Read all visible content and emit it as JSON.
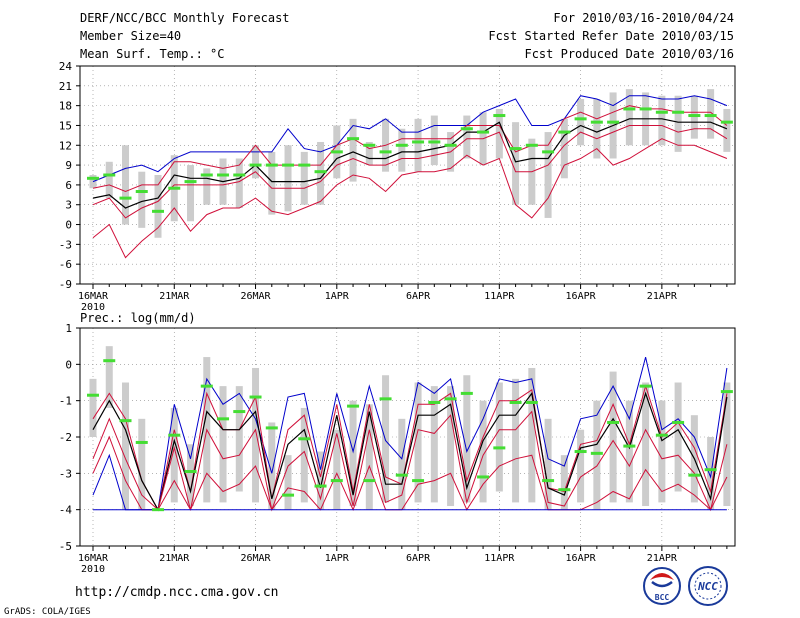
{
  "header": {
    "title": "DERF/NCC/BCC Monthly Forecast",
    "member_size": "Member Size=40",
    "variable1": "Mean Surf. Temp.: °C",
    "fcst_period": "For 2010/03/16-2010/04/24",
    "fcst_started": "Fcst Started Refer Date 2010/03/15",
    "fcst_produced": "Fcst Produced Date 2010/03/16"
  },
  "footer": {
    "url": "http://cmdp.ncc.cma.gov.cn",
    "grads": "GrADS: COLA/IGES",
    "logo_bcc": "BCC",
    "logo_ncc": "NCC"
  },
  "colors": {
    "mean": "#000000",
    "inner": "#d0103a",
    "outer": "#0000cc",
    "obs": "#44dd33",
    "box": "#cccccc",
    "grid": "#888888"
  },
  "chart_data": [
    {
      "type": "line",
      "title": "Mean Surf. Temp.: °C",
      "x_tick_labels": [
        "16MAR",
        "21MAR",
        "26MAR",
        "1APR",
        "6APR",
        "11APR",
        "16APR",
        "21APR"
      ],
      "x_tick_days": [
        1,
        6,
        11,
        16,
        21,
        26,
        31,
        36
      ],
      "year_label": "2010",
      "ylim": [
        -9,
        24
      ],
      "yticks": [
        -9,
        -6,
        -3,
        0,
        3,
        6,
        9,
        12,
        15,
        18,
        21,
        24
      ],
      "days": [
        1,
        2,
        3,
        4,
        5,
        6,
        7,
        8,
        9,
        10,
        11,
        12,
        13,
        14,
        15,
        16,
        17,
        18,
        19,
        20,
        21,
        22,
        23,
        24,
        25,
        26,
        27,
        28,
        29,
        30,
        31,
        32,
        33,
        34,
        35,
        36,
        37,
        38,
        39,
        40
      ],
      "series": [
        {
          "name": "max",
          "values": [
            6.5,
            7.5,
            8.5,
            9,
            8,
            10,
            11,
            11,
            11,
            11,
            11,
            11,
            14.5,
            11.5,
            11,
            12,
            15,
            14.5,
            16,
            14,
            14,
            15,
            15,
            15,
            17,
            18,
            19,
            15,
            15,
            16,
            19.5,
            19,
            18,
            19.5,
            19.5,
            19,
            19,
            19.5,
            19,
            18
          ]
        },
        {
          "name": "upper",
          "values": [
            5.5,
            6,
            5,
            6,
            6,
            9.5,
            9.5,
            9,
            8.5,
            9,
            12,
            9,
            9,
            9,
            9,
            12,
            13,
            11.5,
            12,
            13,
            13,
            13,
            13,
            15,
            15,
            15,
            11,
            12,
            12,
            16,
            17,
            16,
            17,
            18,
            17.5,
            17.5,
            17,
            17,
            17,
            15
          ]
        },
        {
          "name": "mean",
          "values": [
            4,
            4.5,
            2.5,
            3.5,
            4,
            7.5,
            7,
            7,
            6.5,
            7,
            9,
            6.5,
            6.5,
            6.5,
            7,
            10,
            11,
            10,
            10,
            11,
            11,
            11.5,
            12,
            14,
            14,
            15.5,
            9.5,
            10,
            10,
            13.5,
            15,
            14,
            15,
            16,
            16,
            16,
            15.5,
            15.5,
            15.5,
            14.5
          ]
        },
        {
          "name": "lower",
          "values": [
            3,
            4,
            1,
            2.5,
            3.5,
            6,
            6,
            6,
            6,
            6.5,
            8,
            5.5,
            5.5,
            5.5,
            6.5,
            9,
            10,
            9,
            9,
            10,
            10,
            10.5,
            11,
            13,
            13,
            14,
            8,
            8,
            9,
            12,
            14,
            13,
            14,
            15,
            15,
            15,
            14,
            14.5,
            14.5,
            13
          ]
        },
        {
          "name": "min",
          "values": [
            -2,
            0,
            -5,
            -2.5,
            -0.5,
            2.5,
            -1,
            1.5,
            2.5,
            2.5,
            4,
            2,
            1.5,
            2.5,
            3.5,
            6,
            7.5,
            7,
            5,
            7.5,
            8,
            8,
            8.5,
            10.5,
            9,
            10,
            3,
            1,
            4,
            9,
            10,
            11.5,
            9,
            10,
            11.5,
            13,
            12,
            12,
            11,
            10
          ]
        }
      ],
      "obs_values": [
        7,
        7.5,
        4,
        5,
        2,
        5.5,
        6.5,
        7.5,
        7.5,
        7.5,
        9,
        9,
        9,
        9,
        8,
        11,
        13,
        12,
        11,
        12,
        12.5,
        12.5,
        12,
        14.5,
        14,
        16.5,
        11.5,
        12,
        11,
        14,
        16,
        15.5,
        15.5,
        17.5,
        17.5,
        17,
        17,
        16.5,
        16.5,
        15.5
      ],
      "box_ranges": [
        [
          5.5,
          7.5
        ],
        [
          4,
          9.5
        ],
        [
          0,
          12
        ],
        [
          -0.5,
          8
        ],
        [
          -2,
          7.5
        ],
        [
          0.5,
          10.5
        ],
        [
          0.5,
          9
        ],
        [
          3,
          8.5
        ],
        [
          3,
          10
        ],
        [
          2.5,
          10
        ],
        [
          7,
          12
        ],
        [
          1.5,
          11
        ],
        [
          2,
          12
        ],
        [
          3,
          11
        ],
        [
          3,
          12.5
        ],
        [
          7,
          15
        ],
        [
          6.5,
          16
        ],
        [
          9,
          12.5
        ],
        [
          8,
          16
        ],
        [
          8,
          14.5
        ],
        [
          8,
          16
        ],
        [
          9,
          16.5
        ],
        [
          8,
          14
        ],
        [
          10,
          16.5
        ],
        [
          9,
          17
        ],
        [
          10,
          17.5
        ],
        [
          3,
          15.5
        ],
        [
          3,
          13
        ],
        [
          1,
          14
        ],
        [
          7,
          16
        ],
        [
          12,
          19
        ],
        [
          10,
          19
        ],
        [
          10,
          20
        ],
        [
          12,
          20.5
        ],
        [
          12,
          20
        ],
        [
          12,
          19.5
        ],
        [
          11,
          19.5
        ],
        [
          13,
          19.5
        ],
        [
          13,
          20.5
        ],
        [
          11,
          17.5
        ]
      ]
    },
    {
      "type": "line",
      "title": "Prec.: log(mm/d)",
      "x_tick_labels": [
        "16MAR",
        "21MAR",
        "26MAR",
        "1APR",
        "6APR",
        "11APR",
        "16APR",
        "21APR"
      ],
      "x_tick_days": [
        1,
        6,
        11,
        16,
        21,
        26,
        31,
        36
      ],
      "year_label": "2010",
      "ylim": [
        -5,
        1
      ],
      "yticks": [
        -5,
        -4,
        -3,
        -2,
        -1,
        0,
        1
      ],
      "days": [
        1,
        2,
        3,
        4,
        5,
        6,
        7,
        8,
        9,
        10,
        11,
        12,
        13,
        14,
        15,
        16,
        17,
        18,
        19,
        20,
        21,
        22,
        23,
        24,
        25,
        26,
        27,
        28,
        29,
        30,
        31,
        32,
        33,
        34,
        35,
        36,
        37,
        38,
        39,
        40
      ],
      "series": [
        {
          "name": "max",
          "values": [
            -3.6,
            -2.5,
            -4,
            -4,
            -4,
            -1.1,
            -2.6,
            -0.4,
            -1.1,
            -0.8,
            -1.5,
            -3,
            -0.9,
            -0.8,
            -2.9,
            -0.8,
            -2.4,
            -0.6,
            -2.1,
            -2.6,
            -0.5,
            -0.8,
            -0.4,
            -2.4,
            -1.5,
            -0.4,
            -0.5,
            -0.4,
            -2.6,
            -2.8,
            -1.5,
            -1.4,
            -0.6,
            -1.5,
            0.2,
            -1.8,
            -1.5,
            -2,
            -3.1,
            -0.1
          ]
        },
        {
          "name": "upper",
          "values": [
            -1.5,
            -0.8,
            -1.5,
            -3.2,
            -4,
            -1.8,
            -3.5,
            -0.8,
            -1.8,
            -1.8,
            -0.9,
            -3.7,
            -1.8,
            -1.4,
            -3.1,
            -1.1,
            -3.5,
            -1.1,
            -3.1,
            -3.3,
            -1.1,
            -1.1,
            -0.8,
            -3.2,
            -2,
            -1,
            -1,
            -0.7,
            -3.4,
            -3.5,
            -2.2,
            -2.1,
            -1.1,
            -2.2,
            -0.6,
            -2,
            -1.6,
            -2.3,
            -3.5,
            -0.8
          ]
        },
        {
          "name": "mean",
          "values": [
            -1.8,
            -1,
            -1.8,
            -3.2,
            -4,
            -2.1,
            -3.5,
            -1.3,
            -1.8,
            -1.8,
            -1.3,
            -3.7,
            -2.2,
            -1.8,
            -3.4,
            -1.4,
            -3.6,
            -1.3,
            -3.3,
            -3.3,
            -1.4,
            -1.4,
            -1.1,
            -3.4,
            -2.1,
            -1.4,
            -1.4,
            -0.8,
            -3.4,
            -3.6,
            -2.3,
            -2.2,
            -1.5,
            -2.3,
            -0.8,
            -2.1,
            -1.8,
            -2.6,
            -3.7,
            -0.9
          ]
        },
        {
          "name": "lower",
          "values": [
            -2.6,
            -1.5,
            -2.6,
            -3.6,
            -4,
            -2.3,
            -4,
            -1.8,
            -2.6,
            -2.5,
            -1.8,
            -4,
            -2.8,
            -2.4,
            -3.7,
            -1.9,
            -3.9,
            -1.8,
            -3.8,
            -3.6,
            -1.8,
            -1.9,
            -1.4,
            -3.8,
            -2.5,
            -1.8,
            -1.8,
            -1.3,
            -3.8,
            -3.9,
            -3.1,
            -2.8,
            -2.1,
            -2.8,
            -1.8,
            -2.6,
            -2.5,
            -3,
            -4,
            -2.2
          ]
        },
        {
          "name": "min",
          "values": [
            -3,
            -2,
            -3.2,
            -4,
            -4,
            -3.2,
            -4,
            -3,
            -3.5,
            -3.3,
            -2.8,
            -4,
            -3.4,
            -3.5,
            -4,
            -3,
            -4,
            -2.8,
            -4,
            -4,
            -3.3,
            -3.2,
            -3,
            -4,
            -3.3,
            -2.8,
            -2.6,
            -2.5,
            -4,
            -4,
            -4,
            -3.8,
            -3.5,
            -3.7,
            -2.9,
            -3.5,
            -3.3,
            -3.6,
            -4,
            -3.1
          ]
        },
        {
          "name": "floor",
          "values": [
            -4,
            -4,
            -4,
            -4,
            -4,
            -4,
            -4,
            -4,
            -4,
            -4,
            -4,
            -4,
            -4,
            -4,
            -4,
            -4,
            -4,
            -4,
            -4,
            -4,
            -4,
            -4,
            -4,
            -4,
            -4,
            -4,
            -4,
            -4,
            -4,
            -4,
            -4,
            -4,
            -4,
            -4,
            -4,
            -4,
            -4,
            -4,
            -4,
            -4
          ]
        }
      ],
      "obs_values": [
        -0.85,
        0.1,
        -1.55,
        -2.15,
        -4,
        -1.95,
        -2.95,
        -0.6,
        -1.5,
        -1.3,
        -0.9,
        -1.75,
        -3.6,
        -2.05,
        -3.35,
        -3.2,
        -1.15,
        -3.2,
        -0.95,
        -3.05,
        -3.2,
        -1.05,
        -0.95,
        -0.8,
        -3.1,
        -2.3,
        -1.05,
        -1.05,
        -3.2,
        -3.45,
        -2.4,
        -2.45,
        -1.6,
        -2.25,
        -0.6,
        -1.95,
        -1.6,
        -3.05,
        -2.9,
        -0.75
      ],
      "box_ranges": [
        [
          -2,
          -0.4
        ],
        [
          -1.2,
          0.5
        ],
        [
          -4,
          -0.5
        ],
        [
          -4,
          -1.5
        ],
        [
          -4,
          -4
        ],
        [
          -3.8,
          -1.2
        ],
        [
          -3.9,
          -2.2
        ],
        [
          -3.8,
          0.2
        ],
        [
          -3.8,
          -0.6
        ],
        [
          -3.5,
          -0.6
        ],
        [
          -3.8,
          -0.1
        ],
        [
          -4,
          -1.6
        ],
        [
          -4,
          -2.5
        ],
        [
          -3.8,
          -1.2
        ],
        [
          -4,
          -2.4
        ],
        [
          -4,
          -1.8
        ],
        [
          -3.9,
          -1
        ],
        [
          -4,
          -1.1
        ],
        [
          -3.8,
          -0.3
        ],
        [
          -4,
          -1.5
        ],
        [
          -3.8,
          -0.5
        ],
        [
          -3.8,
          -0.6
        ],
        [
          -3.9,
          -0.6
        ],
        [
          -3.8,
          -0.3
        ],
        [
          -3.8,
          -1
        ],
        [
          -3.5,
          -0.5
        ],
        [
          -3.8,
          -0.4
        ],
        [
          -3.8,
          -0.1
        ],
        [
          -4,
          -1.5
        ],
        [
          -4,
          -2.5
        ],
        [
          -3.8,
          -1.8
        ],
        [
          -4,
          -1
        ],
        [
          -3.8,
          -0.2
        ],
        [
          -3.8,
          -1
        ],
        [
          -3.9,
          -0.5
        ],
        [
          -3.8,
          -1
        ],
        [
          -3.5,
          -0.5
        ],
        [
          -3.8,
          -1.4
        ],
        [
          -4,
          -2
        ],
        [
          -3.9,
          -0.5
        ]
      ]
    }
  ]
}
